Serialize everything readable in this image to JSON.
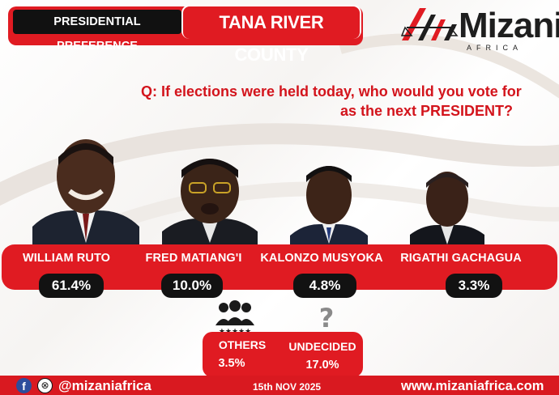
{
  "header": {
    "badge_label": "PRESIDENTIAL PREFERENCE",
    "county": "TANA RIVER COUNTY"
  },
  "logo": {
    "name": "Mizani",
    "sub": "AFRICA"
  },
  "question": {
    "line1": "Q: If elections were held today, who would you vote for",
    "line2": "as the next  PRESIDENT?"
  },
  "candidates": [
    {
      "name": "WILLIAM RUTO",
      "percent": "61.4%"
    },
    {
      "name": "FRED MATIANG'I",
      "percent": "10.0%"
    },
    {
      "name": "KALONZO MUSYOKA",
      "percent": "4.8%"
    },
    {
      "name": "RIGATHI GACHAGUA",
      "percent": "3.3%"
    }
  ],
  "others": {
    "label": "OTHERS",
    "percent": "3.5%",
    "icon": "group-icon"
  },
  "undecided": {
    "label": "UNDECIDED",
    "percent": "17.0%",
    "icon": "question-mark-icon"
  },
  "footer": {
    "facebook_icon": "f",
    "x_icon": "⊗",
    "handle": "@mizaniafrica",
    "date": "15th NOV 2025",
    "website": "www.mizaniafrica.com"
  },
  "colors": {
    "brand_red": "#e01b22",
    "dark": "#121212",
    "question_red": "#d3141c"
  }
}
